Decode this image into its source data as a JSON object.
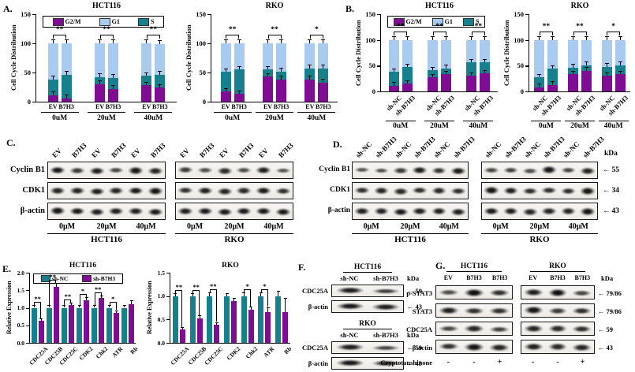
{
  "figure": {
    "colors": {
      "G2/M": "#7E0D93",
      "G1": "#A9CBF0",
      "S": "#16808C",
      "sh-NC": "#16808C",
      "sh-B7H3": "#7E0D93",
      "axis": "#000000"
    },
    "panelA": {
      "label": "A.",
      "ylabel": "Cell Cycle Distribution",
      "charts": [
        "A_HCT116",
        "A_RKO"
      ]
    },
    "panelB": {
      "label": "B.",
      "ylabel": "Cell Cycle Distribution",
      "charts": [
        "B_HCT116",
        "B_RKO"
      ]
    },
    "panelC": {
      "label": "C.",
      "row_labels": [
        "Cyclin B1",
        "CDK1",
        "β-actin"
      ],
      "groups": [
        {
          "cell": "HCT116",
          "lanes": [
            "EV",
            "B7H3",
            "EV",
            "B7H3",
            "EV",
            "B7H3"
          ],
          "doses": [
            "0μM",
            "20μM",
            "40μM"
          ],
          "bands": [
            [
              0.9,
              0.6,
              0.85,
              0.5,
              0.95,
              0.8
            ],
            [
              0.8,
              0.8,
              0.85,
              0.8,
              0.9,
              0.95
            ],
            [
              0.95,
              0.9,
              0.85,
              0.85,
              0.85,
              0.9
            ]
          ]
        },
        {
          "cell": "RKO",
          "lanes": [
            "EV",
            "B7H3",
            "EV",
            "B7H3",
            "EV",
            "B7H3"
          ],
          "doses": [
            "0μM",
            "20μM",
            "40μM"
          ],
          "bands": [
            [
              0.6,
              0.45,
              0.75,
              0.45,
              0.85,
              0.35
            ],
            [
              0.7,
              0.85,
              0.8,
              0.75,
              0.9,
              0.7
            ],
            [
              0.85,
              0.9,
              0.9,
              0.9,
              0.9,
              0.9
            ]
          ]
        }
      ]
    },
    "panelD": {
      "label": "D.",
      "row_labels": [
        "Cyclin B1",
        "CDK1",
        "β-actin"
      ],
      "kda_header": "kDa",
      "kda": [
        "55",
        "34",
        "43"
      ],
      "groups": [
        {
          "cell": "HCT116",
          "lanes": [
            "sh-NC",
            "sh-B7H3",
            "sh-NC",
            "sh-B7H3",
            "sh-NC",
            "sh-B7H3"
          ],
          "doses": [
            "0μM",
            "20μM",
            "40μM"
          ],
          "bands": [
            [
              0.35,
              0.4,
              0.6,
              0.85,
              0.65,
              0.9
            ],
            [
              0.7,
              0.8,
              0.75,
              0.7,
              0.75,
              0.7
            ],
            [
              0.85,
              0.8,
              0.9,
              0.85,
              0.85,
              0.85
            ]
          ]
        },
        {
          "cell": "RKO",
          "lanes": [
            "sh-NC",
            "sh-B7H3",
            "sh-NC",
            "sh-B7H3",
            "sh-NC",
            "sh-B7H3"
          ],
          "doses": [
            "0μM",
            "20μM",
            "40μM"
          ],
          "bands": [
            [
              0.5,
              0.55,
              0.45,
              0.95,
              0.5,
              0.8
            ],
            [
              0.95,
              0.85,
              0.7,
              0.7,
              0.7,
              0.95
            ],
            [
              0.9,
              0.85,
              0.8,
              0.8,
              0.8,
              0.95
            ]
          ]
        }
      ]
    },
    "panelE": {
      "label": "E.",
      "ylabel": "Relative Expression",
      "charts": [
        "E_HCT116",
        "E_RKO"
      ]
    },
    "panelF": {
      "label": "F.",
      "kda_header": "kDa",
      "groups": [
        {
          "cell": "HCT116",
          "lanes": [
            "sh-NC",
            "sh-B7H3"
          ],
          "rows": [
            {
              "name": "CDC25A",
              "kda": "59",
              "bands": [
                0.85,
                0.55
              ]
            },
            {
              "name": "β-actin",
              "kda": "43",
              "bands": [
                0.9,
                0.85
              ]
            }
          ]
        },
        {
          "cell": "RKO",
          "lanes": [
            "sh-NC",
            "sh-B7H3"
          ],
          "rows": [
            {
              "name": "CDC25A",
              "kda": "59",
              "bands": [
                0.85,
                0.5
              ]
            },
            {
              "name": "β-actin",
              "kda": "43",
              "bands": [
                0.9,
                0.7
              ]
            }
          ]
        }
      ]
    },
    "panelG": {
      "label": "G.",
      "kda_header": "kDa",
      "cells": [
        "HCT116",
        "RKO"
      ],
      "lanes": [
        "EV",
        "B7H3",
        "B7H3"
      ],
      "rows": [
        {
          "name": "p-STAT3",
          "kda": "79/86",
          "bands": {
            "HCT116": [
              0.45,
              1.0,
              0.7
            ],
            "RKO": [
              0.85,
              1.0,
              0.5
            ]
          }
        },
        {
          "name": "STAT3",
          "kda": "79/86",
          "bands": {
            "HCT116": [
              0.85,
              0.7,
              0.7
            ],
            "RKO": [
              0.95,
              0.6,
              0.7
            ]
          }
        },
        {
          "name": "CDC25A",
          "kda": "59",
          "bands": {
            "HCT116": [
              0.5,
              0.8,
              0.55
            ],
            "RKO": [
              0.8,
              0.75,
              0.7
            ]
          }
        },
        {
          "name": "β-actin",
          "kda": "43",
          "bands": {
            "HCT116": [
              0.7,
              0.95,
              0.8
            ],
            "RKO": [
              0.85,
              0.75,
              0.8
            ]
          }
        }
      ],
      "treatment": {
        "label": "Cryptotanshinone",
        "values": {
          "HCT116": [
            "-",
            "-",
            "+"
          ],
          "RKO": [
            "-",
            "-",
            "+"
          ]
        }
      }
    }
  },
  "chart_data": [
    {
      "id": "A_HCT116",
      "type": "stacked_bar",
      "panel": "A",
      "title": "HCT116",
      "ylabel": "Cell Cycle Distribution",
      "ylim": [
        0,
        150
      ],
      "yticks": [
        0,
        50,
        100,
        150
      ],
      "legend": [
        "G2/M",
        "G1",
        "S"
      ],
      "legend_visible": true,
      "label_style": "paired",
      "bar_labels": [
        "EV",
        "B7H3"
      ],
      "groups": [
        {
          "dose": "0uM",
          "sig": "**",
          "bars": [
            {
              "label": "EV",
              "values": {
                "G2/M": 11,
                "S": 27,
                "G1": 62
              }
            },
            {
              "label": "B7H3",
              "values": {
                "G2/M": 6,
                "S": 40,
                "G1": 54
              }
            }
          ]
        },
        {
          "dose": "20uM",
          "sig": "**",
          "bars": [
            {
              "label": "EV",
              "values": {
                "G2/M": 30,
                "S": 12,
                "G1": 58
              }
            },
            {
              "label": "B7H3",
              "values": {
                "G2/M": 22,
                "S": 19,
                "G1": 59
              }
            }
          ]
        },
        {
          "dose": "40uM",
          "sig": "**",
          "bars": [
            {
              "label": "EV",
              "values": {
                "G2/M": 28,
                "S": 16,
                "G1": 56
              }
            },
            {
              "label": "B7H3",
              "values": {
                "G2/M": 24,
                "S": 22,
                "G1": 53
              }
            }
          ]
        }
      ]
    },
    {
      "id": "A_RKO",
      "type": "stacked_bar",
      "panel": "A",
      "title": "RKO",
      "ylabel": "Cell Cycle Distribution",
      "ylim": [
        0,
        150
      ],
      "yticks": [
        0,
        50,
        100,
        150
      ],
      "legend": [
        "G2/M",
        "G1",
        "S"
      ],
      "legend_visible": false,
      "label_style": "paired",
      "bar_labels": [
        "EV",
        "B7H3"
      ],
      "groups": [
        {
          "dose": "0uM",
          "sig": "**",
          "bars": [
            {
              "label": "EV",
              "values": {
                "G2/M": 17,
                "S": 34,
                "G1": 49
              }
            },
            {
              "label": "B7H3",
              "values": {
                "G2/M": 13,
                "S": 42,
                "G1": 45
              }
            }
          ]
        },
        {
          "dose": "20uM",
          "sig": "**",
          "bars": [
            {
              "label": "EV",
              "values": {
                "G2/M": 43,
                "S": 12,
                "G1": 45
              }
            },
            {
              "label": "B7H3",
              "values": {
                "G2/M": 38,
                "S": 14,
                "G1": 48
              }
            }
          ]
        },
        {
          "dose": "40uM",
          "sig": "*",
          "bars": [
            {
              "label": "EV",
              "values": {
                "G2/M": 38,
                "S": 19,
                "G1": 43
              }
            },
            {
              "label": "B7H3",
              "values": {
                "G2/M": 33,
                "S": 24,
                "G1": 43
              }
            }
          ]
        }
      ]
    },
    {
      "id": "B_HCT116",
      "type": "stacked_bar",
      "panel": "B",
      "title": "HCT116",
      "ylabel": "Cell Cycle Distribution",
      "ylim": [
        0,
        150
      ],
      "yticks": [
        0,
        50,
        100,
        150
      ],
      "legend": [
        "G2/M",
        "G1",
        "S"
      ],
      "legend_visible": true,
      "label_style": "rotated",
      "bar_labels": [
        "sh-NC",
        "sh-B7H3"
      ],
      "groups": [
        {
          "dose": "0uM",
          "sig": "**",
          "bars": [
            {
              "label": "sh-NC",
              "values": {
                "G2/M": 11,
                "S": 27,
                "G1": 62
              }
            },
            {
              "label": "sh-B7H3",
              "values": {
                "G2/M": 15,
                "S": 32,
                "G1": 53
              }
            }
          ]
        },
        {
          "dose": "20uM",
          "sig": "**",
          "bars": [
            {
              "label": "sh-NC",
              "values": {
                "G2/M": 27,
                "S": 14,
                "G1": 59
              }
            },
            {
              "label": "sh-B7H3",
              "values": {
                "G2/M": 33,
                "S": 12,
                "G1": 55
              }
            }
          ]
        },
        {
          "dose": "40uM",
          "sig": "**",
          "bars": [
            {
              "label": "sh-NC",
              "values": {
                "G2/M": 30,
                "S": 26,
                "G1": 44
              }
            },
            {
              "label": "sh-B7H3",
              "values": {
                "G2/M": 35,
                "S": 21,
                "G1": 44
              }
            }
          ]
        }
      ]
    },
    {
      "id": "B_RKO",
      "type": "stacked_bar",
      "panel": "B",
      "title": "RKO",
      "ylabel": "Cell Cycle Distribution",
      "ylim": [
        0,
        150
      ],
      "yticks": [
        0,
        50,
        100,
        150
      ],
      "legend": [
        "G2/M",
        "G1",
        "S"
      ],
      "legend_visible": false,
      "label_style": "rotated",
      "bar_labels": [
        "sh-NC",
        "sh-B7H3"
      ],
      "groups": [
        {
          "dose": "0uM",
          "sig": "**",
          "bars": [
            {
              "label": "sh-NC",
              "values": {
                "G2/M": 8,
                "S": 19,
                "G1": 73
              }
            },
            {
              "label": "sh-B7H3",
              "values": {
                "G2/M": 13,
                "S": 31,
                "G1": 56
              }
            }
          ]
        },
        {
          "dose": "20uM",
          "sig": "**",
          "bars": [
            {
              "label": "sh-NC",
              "values": {
                "G2/M": 33,
                "S": 13,
                "G1": 54
              }
            },
            {
              "label": "sh-B7H3",
              "values": {
                "G2/M": 40,
                "S": 11,
                "G1": 49
              }
            }
          ]
        },
        {
          "dose": "40uM",
          "sig": "*",
          "bars": [
            {
              "label": "sh-NC",
              "values": {
                "G2/M": 30,
                "S": 18,
                "G1": 52
              }
            },
            {
              "label": "sh-B7H3",
              "values": {
                "G2/M": 33,
                "S": 18,
                "G1": 49
              }
            }
          ]
        }
      ]
    },
    {
      "id": "E_HCT116",
      "type": "bar",
      "panel": "E",
      "title": "HCT116",
      "ylabel": "Relative Expression",
      "ylim": [
        0,
        2.0
      ],
      "yticks": [
        "0.0",
        "0.5",
        "1.0",
        "1.5",
        "2.0"
      ],
      "legend": [
        "sh-NC",
        "sh-B7H3"
      ],
      "legend_visible": true,
      "categories": [
        "CDC25A",
        "CDC25B",
        "CDC25C",
        "CDK2",
        "Chk2",
        "ATR",
        "Rb"
      ],
      "series": [
        {
          "name": "sh-NC",
          "values": [
            1.0,
            1.0,
            1.0,
            1.0,
            1.0,
            1.0,
            1.0
          ],
          "errors": [
            0.05,
            0.05,
            0.05,
            0.05,
            0.05,
            0.05,
            0.05
          ]
        },
        {
          "name": "sh-B7H3",
          "values": [
            0.62,
            1.6,
            1.08,
            1.22,
            1.28,
            0.86,
            1.1
          ],
          "errors": [
            0.05,
            0.08,
            0.05,
            0.07,
            0.05,
            0.05,
            0.1
          ]
        }
      ],
      "sig": [
        "**",
        "**",
        "**",
        "*",
        "**",
        "*",
        ""
      ]
    },
    {
      "id": "E_RKO",
      "type": "bar",
      "panel": "E",
      "title": "RKO",
      "ylabel": "Relative Expression",
      "ylim": [
        0,
        1.5
      ],
      "yticks": [
        "0.0",
        "0.5",
        "1.0",
        "1.5"
      ],
      "legend": [
        "sh-NC",
        "sh-B7H3"
      ],
      "legend_visible": false,
      "categories": [
        "CDC25A",
        "CDC25B",
        "CDC25C",
        "CDK2",
        "Chk2",
        "ATR",
        "Rb"
      ],
      "series": [
        {
          "name": "sh-NC",
          "values": [
            1.0,
            1.0,
            1.0,
            1.0,
            1.0,
            1.0,
            1.0
          ],
          "errors": [
            0.05,
            0.05,
            0.06,
            0.05,
            0.06,
            0.07,
            0.1
          ]
        },
        {
          "name": "sh-B7H3",
          "values": [
            0.28,
            0.52,
            0.38,
            0.9,
            0.7,
            0.65,
            0.65
          ],
          "errors": [
            0.04,
            0.06,
            0.05,
            0.05,
            0.06,
            0.1,
            0.3
          ]
        }
      ],
      "sig": [
        "**",
        "**",
        "**",
        "",
        "*",
        "*",
        ""
      ]
    }
  ]
}
